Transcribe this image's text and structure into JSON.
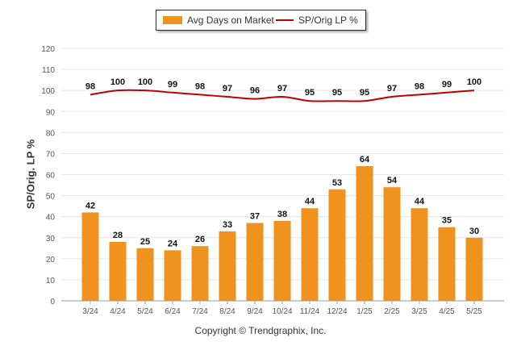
{
  "colors": {
    "bar": "#F0921E",
    "line": "#C00000",
    "grid": "#e6e6e6"
  },
  "chart_data": {
    "type": "bar",
    "categories": [
      "3/24",
      "4/24",
      "5/24",
      "6/24",
      "7/24",
      "8/24",
      "9/24",
      "10/24",
      "11/24",
      "12/24",
      "1/25",
      "2/25",
      "3/25",
      "4/25",
      "5/25"
    ],
    "series": [
      {
        "name": "Avg Days on Market",
        "type": "bar",
        "values": [
          42,
          28,
          25,
          24,
          26,
          33,
          37,
          38,
          44,
          53,
          64,
          54,
          44,
          35,
          30
        ]
      },
      {
        "name": "SP/Orig LP %",
        "type": "line",
        "values": [
          98,
          100,
          100,
          99,
          98,
          97,
          96,
          97,
          95,
          95,
          95,
          97,
          98,
          99,
          100
        ]
      }
    ],
    "ylabel": "SP/Orig. LP %",
    "ylim": [
      0,
      120
    ],
    "yticks": [
      0,
      10,
      20,
      30,
      40,
      50,
      60,
      70,
      80,
      90,
      100,
      110,
      120
    ],
    "grid": true,
    "legend": "top-center"
  },
  "footer": "Copyright © Trendgraphix, Inc."
}
